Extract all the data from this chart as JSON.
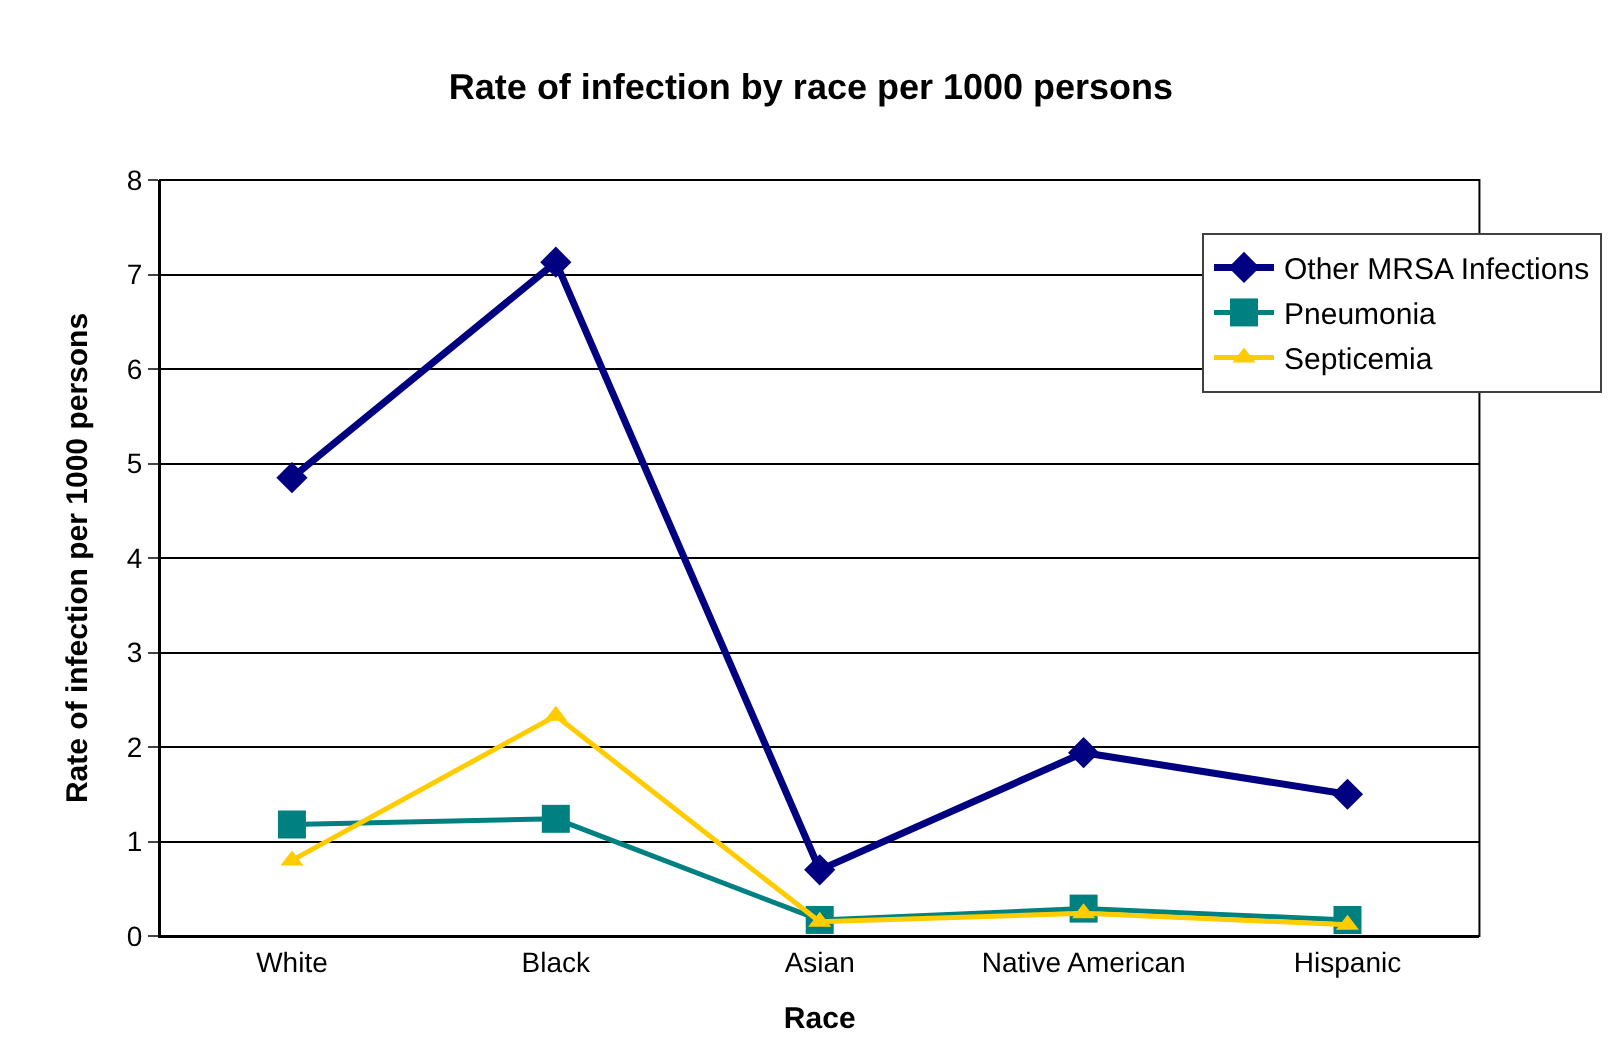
{
  "chart_data": {
    "type": "line",
    "title": "Rate of infection by race per 1000 persons",
    "xlabel": "Race",
    "ylabel": "Rate of infection per 1000 persons",
    "categories": [
      "White",
      "Black",
      "Asian",
      "Native American",
      "Hispanic"
    ],
    "series": [
      {
        "name": "Other MRSA Infections",
        "color": "#000080",
        "marker": "diamond",
        "values": [
          4.85,
          7.13,
          0.7,
          1.94,
          1.5
        ]
      },
      {
        "name": "Pneumonia",
        "color": "#008080",
        "marker": "square",
        "values": [
          1.18,
          1.24,
          0.17,
          0.29,
          0.17
        ]
      },
      {
        "name": "Septicemia",
        "color": "#ffcc00",
        "marker": "triangle",
        "values": [
          0.8,
          2.33,
          0.15,
          0.24,
          0.12
        ]
      }
    ],
    "ylim": [
      0,
      8
    ],
    "yticks": [
      0,
      1,
      2,
      3,
      4,
      5,
      6,
      7,
      8
    ],
    "grid": "y",
    "legend": "top right"
  }
}
